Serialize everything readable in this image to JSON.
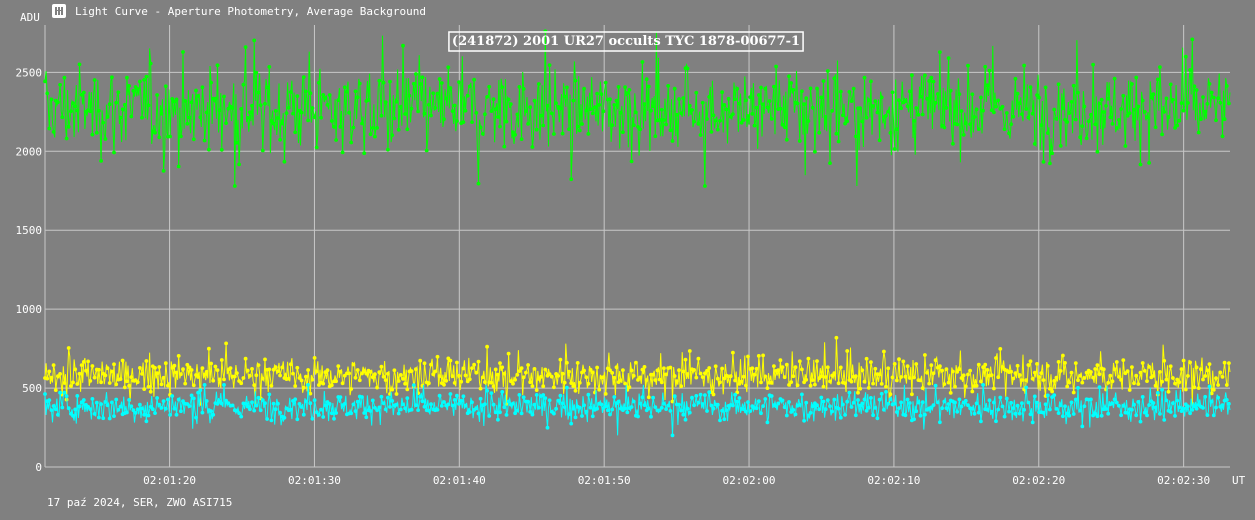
{
  "window": {
    "title": "Light Curve - Aperture Photometry, Average Background",
    "icon": "light-curve-app-icon"
  },
  "status_line": "17 paź 2024, SER, ZWO ASI715",
  "colors": {
    "background": "#808080",
    "grid": "#c8c8c8",
    "text": "#ffffff",
    "target_star": "#00ff00",
    "comparison": "#ffff00",
    "background_series": "#00ffff"
  },
  "chart_data": {
    "type": "line",
    "title": "(241872) 2001 UR27 occults TYC 1878-00677-1",
    "xlabel": "UT",
    "ylabel": "ADU",
    "ylim": [
      0,
      2800
    ],
    "x_range": [
      "02:01:11.4",
      "02:02:33.2"
    ],
    "grid": true,
    "markers": true,
    "yticks": [
      0,
      500,
      1000,
      1500,
      2000,
      2500
    ],
    "xticks": [
      "02:01:20",
      "02:01:30",
      "02:01:40",
      "02:01:50",
      "02:02:00",
      "02:02:10",
      "02:02:20",
      "02:02:30"
    ],
    "series": [
      {
        "color": "#00ff00",
        "mean": 2270,
        "spread": 130,
        "min": 1780,
        "max": 2760
      },
      {
        "color": "#ffff00",
        "mean": 580,
        "spread": 55,
        "min": 400,
        "max": 840
      },
      {
        "color": "#00ffff",
        "mean": 385,
        "spread": 45,
        "min": 200,
        "max": 520
      }
    ]
  }
}
